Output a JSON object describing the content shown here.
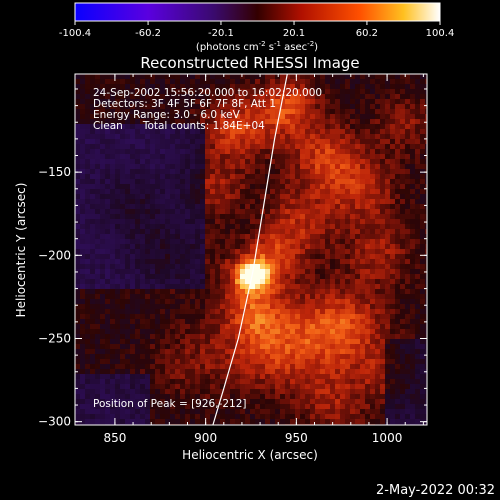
{
  "colorbar": {
    "ticks": [
      "-100.4",
      "-60.2",
      "-20.1",
      "20.1",
      "60.2",
      "100.4"
    ],
    "unit_main": "(photons cm",
    "unit_sup1": "-2",
    "unit_mid": " s",
    "unit_sup2": "-1",
    "unit_end": " asec",
    "unit_sup3": "-2",
    "unit_close": ")",
    "min": -100.4,
    "max": 100.4
  },
  "chart_data": {
    "type": "heatmap",
    "title": "Reconstructed RHESSI Image",
    "xlabel": "Heliocentric X (arcsec)",
    "ylabel": "Heliocentric Y (arcsec)",
    "xlim": [
      828,
      1022
    ],
    "ylim": [
      -302,
      -91
    ],
    "x_ticks": [
      850,
      900,
      950,
      1000
    ],
    "y_ticks": [
      -150,
      -200,
      -250,
      -300
    ],
    "x_tick_labels": [
      "850",
      "900",
      "950",
      "1000"
    ],
    "y_tick_labels": [
      "−150",
      "−200",
      "−250",
      "−300"
    ],
    "peak": {
      "x": 926,
      "y": -212,
      "value": 100.4
    },
    "annotations": [
      "24-Sep-2002 15:56:20.000 to 16:02:20.000",
      "Detectors: 3F 4F 5F 6F 7F 8F, Att 1",
      "Energy Range: 3.0 - 6.0 keV",
      "Clean      Total counts: 1.84E+04"
    ],
    "peak_label": "Position of Peak = [926,-212]",
    "limb_curve": [
      [
        945,
        -91
      ],
      [
        938,
        -130
      ],
      [
        932,
        -170
      ],
      [
        926,
        -210
      ],
      [
        918,
        -250
      ],
      [
        910,
        -280
      ],
      [
        904,
        -302
      ]
    ]
  },
  "footer": {
    "timestamp": "2-May-2022 00:32"
  }
}
